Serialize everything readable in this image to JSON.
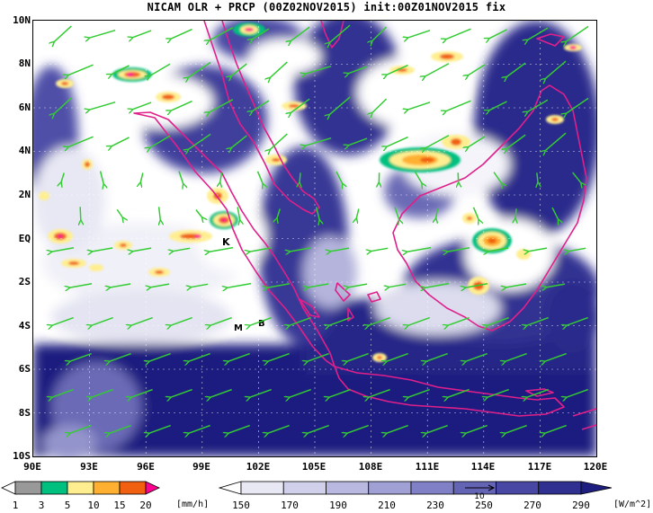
{
  "title": "NICAM OLR + PRCP (00Z02NOV2015) init:00Z01NOV2015 fix",
  "map": {
    "lat_labels": [
      "10N",
      "8N",
      "6N",
      "4N",
      "2N",
      "EQ",
      "2S",
      "4S",
      "6S",
      "8S",
      "10S"
    ],
    "lon_labels": [
      "90E",
      "93E",
      "96E",
      "99E",
      "102E",
      "105E",
      "108E",
      "111E",
      "114E",
      "117E",
      "120E"
    ],
    "lon_range": [
      90,
      120
    ],
    "lat_range": [
      -10,
      10
    ],
    "place_labels": [
      "K",
      "M",
      "B"
    ],
    "colors": {
      "coast": "#e0208a",
      "wind": "#33cc33",
      "olr_deep": "#1e1e80",
      "grid": "#ffffff"
    }
  },
  "precip_bar": {
    "ticks": [
      "1",
      "3",
      "5",
      "10",
      "15",
      "20"
    ],
    "unit": "[mm/h]",
    "colors": [
      "#ffffff",
      "#999999",
      "#00c080",
      "#ffee90",
      "#ffb030",
      "#f06010",
      "#ff0090"
    ]
  },
  "olr_bar": {
    "ticks": [
      "150",
      "170",
      "190",
      "210",
      "230",
      "250",
      "270",
      "290"
    ],
    "unit": "[W/m^2]",
    "colors": [
      "#ffffff",
      "#e8e8f4",
      "#d0d0ea",
      "#b8b8e0",
      "#a0a0d4",
      "#8080c6",
      "#6464b4",
      "#4848a4",
      "#303090",
      "#1e1e80"
    ],
    "vector_ref": "10"
  }
}
